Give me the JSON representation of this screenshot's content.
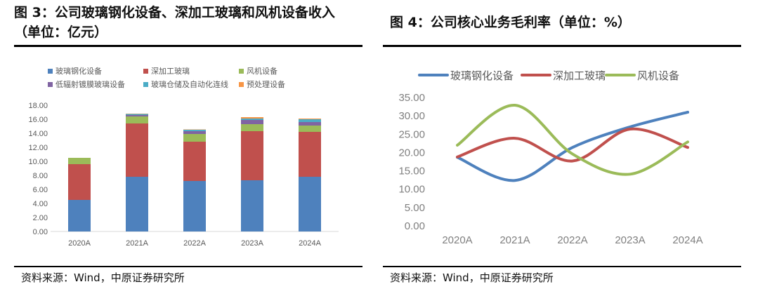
{
  "left": {
    "title_line1": "图 3：公司玻璃钢化设备、深加工玻璃和风机设备收入",
    "title_line2": "（单位：亿元）",
    "source": "资料来源：Wind，中原证券研究所"
  },
  "right": {
    "title": "图 4：公司核心业务毛利率（单位：%）",
    "source": "资料来源：Wind，中原证券研究所"
  },
  "chart_data": [
    {
      "type": "bar",
      "stacked": true,
      "title": "图 3：公司玻璃钢化设备、深加工玻璃和风机设备收入（单位：亿元）",
      "categories": [
        "2020A",
        "2021A",
        "2022A",
        "2023A",
        "2024A"
      ],
      "ylim": [
        0,
        18
      ],
      "yticks": [
        "0.00",
        "2.00",
        "4.00",
        "6.00",
        "8.00",
        "10.00",
        "12.00",
        "14.00",
        "16.00",
        "18.00"
      ],
      "series": [
        {
          "name": "玻璃钢化设备",
          "color": "#4E81BD",
          "values": [
            4.5,
            7.8,
            7.2,
            7.3,
            7.8
          ]
        },
        {
          "name": "深加工玻璃",
          "color": "#C0504D",
          "values": [
            5.1,
            7.6,
            5.6,
            7.0,
            6.4
          ]
        },
        {
          "name": "风机设备",
          "color": "#9BBB59",
          "values": [
            0.9,
            1.0,
            1.1,
            1.0,
            0.9
          ]
        },
        {
          "name": "低辐射镀膜玻璃设备",
          "color": "#8064A2",
          "values": [
            0,
            0.2,
            0.4,
            0.6,
            0.5
          ]
        },
        {
          "name": "玻璃仓储及自动化连线",
          "color": "#4BACC6",
          "values": [
            0,
            0.15,
            0.2,
            0.2,
            0.4
          ]
        },
        {
          "name": "预处理设备",
          "color": "#F79646",
          "values": [
            0,
            0.05,
            0.05,
            0.2,
            0.1
          ]
        }
      ],
      "legend_position": "top"
    },
    {
      "type": "line",
      "smooth": true,
      "title": "图 4：公司核心业务毛利率（单位：%）",
      "categories": [
        "2020A",
        "2021A",
        "2022A",
        "2023A",
        "2024A"
      ],
      "ylim": [
        0,
        35
      ],
      "yticks": [
        "0.00",
        "5.00",
        "10.00",
        "15.00",
        "20.00",
        "25.00",
        "30.00",
        "35.00"
      ],
      "series": [
        {
          "name": "玻璃钢化设备",
          "color": "#4E81BD",
          "values": [
            18.5,
            12.2,
            21.2,
            26.8,
            30.8
          ]
        },
        {
          "name": "深加工玻璃",
          "color": "#C0504D",
          "values": [
            18.6,
            23.7,
            17.5,
            26.2,
            21.2
          ]
        },
        {
          "name": "风机设备",
          "color": "#9BBB59",
          "values": [
            21.8,
            32.7,
            19.4,
            13.9,
            22.7
          ]
        }
      ],
      "legend_position": "top"
    }
  ]
}
